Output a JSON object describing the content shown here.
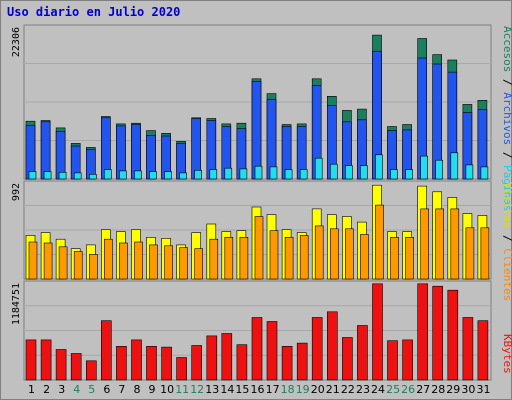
{
  "chart_data": [
    {
      "type": "bar",
      "title": "Uso diario en Julio 2020",
      "categories": [
        "1",
        "2",
        "3",
        "4",
        "5",
        "6",
        "7",
        "8",
        "9",
        "10",
        "11",
        "12",
        "13",
        "14",
        "15",
        "16",
        "17",
        "18",
        "19",
        "20",
        "21",
        "22",
        "23",
        "24",
        "25",
        "26",
        "27",
        "28",
        "29",
        "30",
        "31"
      ],
      "weekend_days": [
        "4",
        "5",
        "11",
        "12",
        "18",
        "19",
        "25",
        "26"
      ],
      "ymax_label": "22306",
      "ylim": [
        0,
        22306
      ],
      "series": [
        {
          "name": "Accesos",
          "color": "#1b7f5f",
          "values": [
            8600,
            8700,
            7600,
            5300,
            4700,
            9300,
            8200,
            8300,
            7200,
            6800,
            5600,
            9100,
            9000,
            8200,
            8300,
            14900,
            12700,
            8100,
            8200,
            14900,
            12300,
            10200,
            10400,
            21400,
            7800,
            8100,
            20900,
            18500,
            17700,
            11100,
            11700
          ]
        },
        {
          "name": "Archivos",
          "color": "#2255ee",
          "values": [
            8000,
            8500,
            7100,
            4900,
            4400,
            9100,
            7900,
            8100,
            6500,
            6400,
            5300,
            9000,
            8700,
            7800,
            7500,
            14500,
            11800,
            7800,
            7800,
            13900,
            10900,
            8500,
            8800,
            19000,
            7200,
            7300,
            18000,
            17100,
            15900,
            9900,
            10300
          ]
        },
        {
          "name": "Páginas",
          "color": "#22ddee",
          "values": [
            1100,
            1100,
            1000,
            900,
            700,
            1400,
            1200,
            1200,
            1100,
            1100,
            900,
            1300,
            1400,
            1600,
            1500,
            1900,
            1800,
            1400,
            1400,
            3100,
            2200,
            2000,
            2000,
            3600,
            1400,
            1400,
            3400,
            2800,
            3900,
            2100,
            1800
          ]
        }
      ]
    },
    {
      "type": "bar",
      "ymax_label": "992",
      "ylim": [
        0,
        992
      ],
      "series": [
        {
          "name": "Visitas",
          "color": "#ffff00",
          "values": [
            460,
            490,
            420,
            320,
            360,
            520,
            500,
            520,
            440,
            430,
            360,
            490,
            580,
            500,
            510,
            760,
            680,
            520,
            490,
            740,
            680,
            660,
            600,
            990,
            500,
            500,
            980,
            920,
            860,
            690,
            670
          ]
        },
        {
          "name": "Clientes",
          "color": "#ff9900",
          "values": [
            390,
            380,
            340,
            290,
            260,
            420,
            380,
            390,
            360,
            350,
            330,
            320,
            420,
            440,
            440,
            660,
            510,
            440,
            460,
            560,
            530,
            530,
            470,
            780,
            440,
            440,
            740,
            740,
            740,
            540,
            540
          ]
        }
      ]
    },
    {
      "type": "bar",
      "ymax_label": "1184751",
      "ylim": [
        0,
        1184751
      ],
      "series": [
        {
          "name": "KBytes",
          "color": "#ee1111",
          "values": [
            500000,
            500000,
            380000,
            330000,
            240000,
            740000,
            420000,
            500000,
            420000,
            410000,
            280000,
            430000,
            550000,
            580000,
            440000,
            780000,
            730000,
            420000,
            460000,
            780000,
            850000,
            530000,
            680000,
            1200000,
            490000,
            500000,
            1200000,
            1170000,
            1120000,
            780000,
            740000
          ]
        }
      ]
    }
  ],
  "legend": {
    "accesos": "Accesos",
    "archivos": "Archivos",
    "paginas": "Páginas",
    "visitas": "Visitas",
    "clientes": "Clientes",
    "kbytes": "KBytes",
    "sep": " / "
  }
}
